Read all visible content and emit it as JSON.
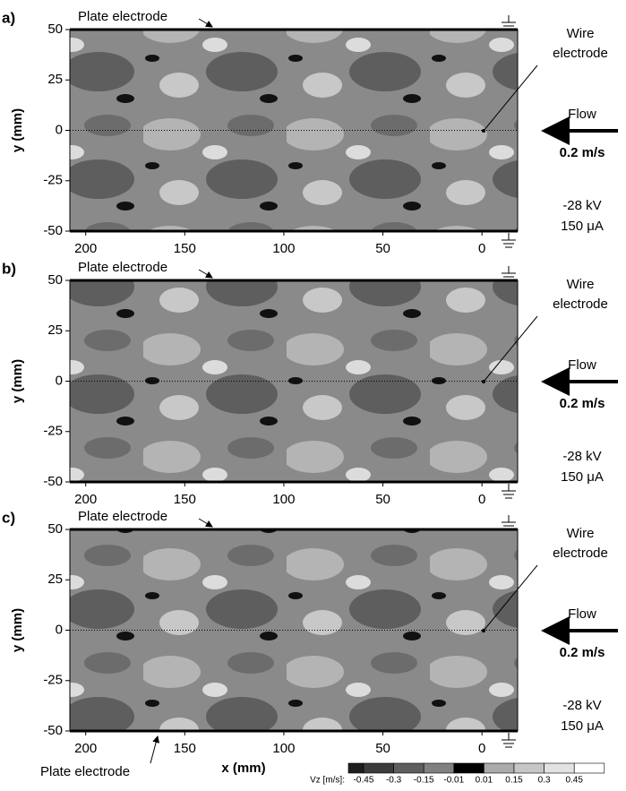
{
  "chart_data": [
    {
      "type": "contour",
      "panel_label": "a)",
      "ylabel": "y (mm)",
      "xlim": [
        208,
        -18
      ],
      "ylim": [
        -50,
        50
      ],
      "xticks": [
        200,
        150,
        100,
        50,
        0
      ],
      "yticks": [
        50,
        25,
        0,
        -25,
        -50
      ],
      "annotations": {
        "plate_top": "Plate electrode",
        "wire": [
          "Wire",
          "electrode"
        ],
        "flow": "Flow",
        "speed": "0.2 m/s",
        "voltage": "-28 kV",
        "current": "150 μA"
      }
    },
    {
      "type": "contour",
      "panel_label": "b)",
      "ylabel": "y (mm)",
      "xlim": [
        208,
        -18
      ],
      "ylim": [
        -50,
        50
      ],
      "xticks": [
        200,
        150,
        100,
        50,
        0
      ],
      "yticks": [
        50,
        25,
        0,
        -25,
        -50
      ],
      "annotations": {
        "plate_top": "Plate electrode",
        "wire": [
          "Wire",
          "electrode"
        ],
        "flow": "Flow",
        "speed": "0.2 m/s",
        "voltage": "-28 kV",
        "current": "150 μA"
      }
    },
    {
      "type": "contour",
      "panel_label": "c)",
      "ylabel": "y (mm)",
      "xlabel": "x (mm)",
      "xlim": [
        208,
        -18
      ],
      "ylim": [
        -50,
        50
      ],
      "xticks": [
        200,
        150,
        100,
        50,
        0
      ],
      "yticks": [
        50,
        25,
        0,
        -25,
        -50
      ],
      "annotations": {
        "plate_top": "Plate electrode",
        "plate_bottom": "Plate electrode",
        "wire": [
          "Wire",
          "electrode"
        ],
        "flow": "Flow",
        "speed": "0.2 m/s",
        "voltage": "-28 kV",
        "current": "150 μA"
      }
    }
  ],
  "colorbar": {
    "label": "Vz [m/s]:",
    "ticks": [
      -0.45,
      -0.3,
      -0.15,
      -0.01,
      0.01,
      0.15,
      0.3,
      0.45
    ],
    "colors": [
      "#1e1e1e",
      "#3c3c3c",
      "#5e5e5e",
      "#808080",
      "#000000",
      "#aaaaaa",
      "#c6c6c6",
      "#e2e2e2",
      "#ffffff"
    ]
  }
}
